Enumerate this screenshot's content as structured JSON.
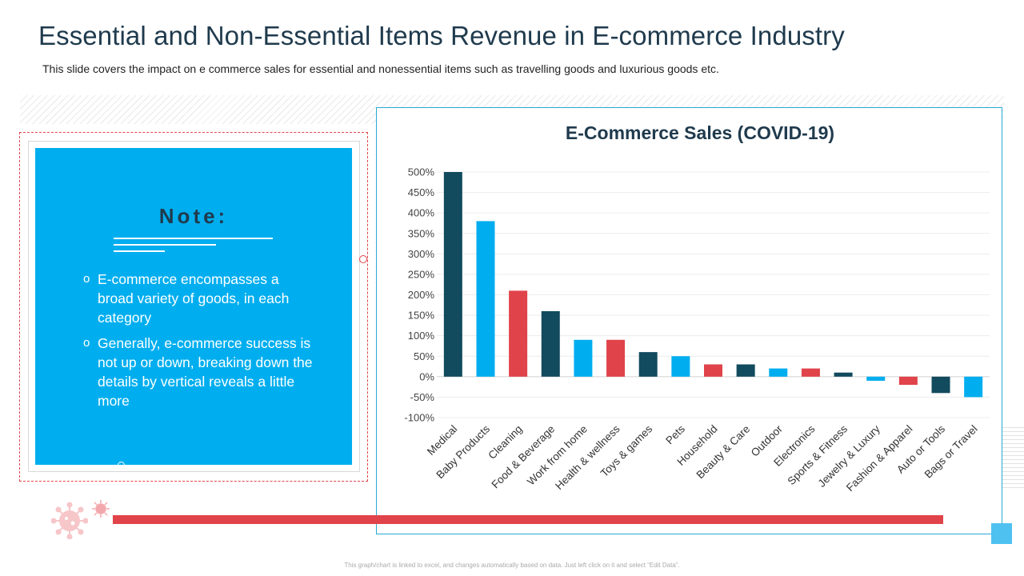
{
  "header": {
    "title": "Essential and Non-Essential Items Revenue in E-commerce Industry",
    "subtitle": "This slide covers the impact on e commerce sales for essential and nonessential items such as travelling goods and luxurious goods etc."
  },
  "note": {
    "heading": "Note:",
    "bullet_glyph": "o",
    "items": [
      "E-commerce encompasses a broad variety of goods, in each category",
      "Generally, e-commerce success is not up or down, breaking down the details by vertical reveals a little more"
    ]
  },
  "footer": {
    "text": "This graph/chart is linked to excel, and changes automatically based on data. Just left click on it and select “Edit Data”."
  },
  "colors": {
    "dark": "#124a5e",
    "blue": "#00aeef",
    "red": "#e0434a"
  },
  "chart_data": {
    "type": "bar",
    "title": "E-Commerce Sales (COVID-19)",
    "xlabel": "",
    "ylabel": "",
    "ylim": [
      -100,
      500
    ],
    "yticks": [
      500,
      450,
      400,
      350,
      300,
      250,
      200,
      150,
      100,
      50,
      0,
      -50,
      -100
    ],
    "tick_suffix": "%",
    "grid": true,
    "categories": [
      "Medical",
      "Baby Products",
      "Cleaning",
      "Food & Beverage",
      "Work from home",
      "Health & wellness",
      "Toys & games",
      "Pets",
      "Household",
      "Beauty & Care",
      "Outdoor",
      "Electronics",
      "Sports & Fitness",
      "Jewelry & Luxury",
      "Fashion & Apparel",
      "Auto or Tools",
      "Bags or Travel"
    ],
    "values": [
      500,
      380,
      210,
      160,
      90,
      90,
      60,
      50,
      30,
      30,
      20,
      20,
      10,
      -10,
      -20,
      -40,
      -50
    ],
    "bar_colors": [
      "dark",
      "blue",
      "red",
      "dark",
      "blue",
      "red",
      "dark",
      "blue",
      "red",
      "dark",
      "blue",
      "red",
      "dark",
      "blue",
      "red",
      "dark",
      "blue"
    ]
  }
}
